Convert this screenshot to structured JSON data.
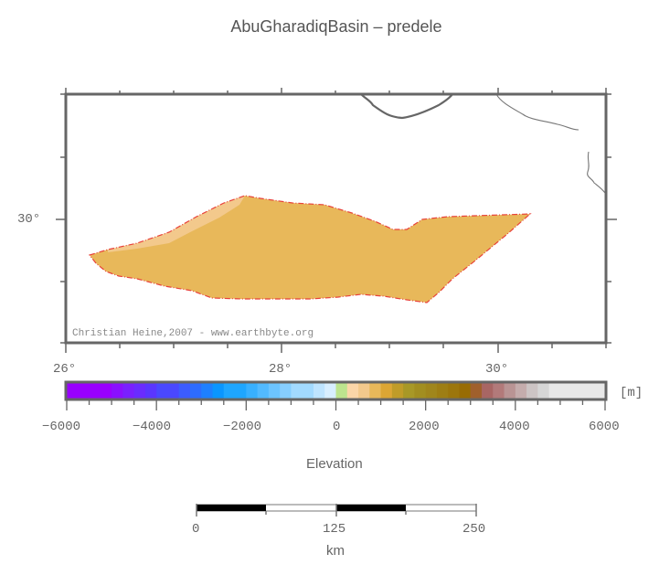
{
  "title": "AbuGharadiqBasin – predele",
  "map": {
    "credit": "Christian Heine,2007 - www.earthbyte.org",
    "x_ticks": [
      "26°",
      "28°",
      "30°"
    ],
    "y_ticks": [
      "30°"
    ],
    "basin_fill_color": "#e8b85a",
    "basin_light_fill_color": "#f3c98c",
    "outline_color": "#e8423a",
    "coastline_color": "#666666"
  },
  "colorbar": {
    "unit": "[m]",
    "tick_labels": [
      "−6000",
      "−4000",
      "−2000",
      "0",
      "2000",
      "4000",
      "6000"
    ],
    "label": "Elevation",
    "range": [
      -6000,
      6000
    ],
    "segments": [
      {
        "from": -6000,
        "to": -5000,
        "color": "#9900ff"
      },
      {
        "from": -5000,
        "to": -4750,
        "color": "#8a10ff"
      },
      {
        "from": -4750,
        "to": -4500,
        "color": "#7a20ff"
      },
      {
        "from": -4500,
        "to": -4250,
        "color": "#6a2cff"
      },
      {
        "from": -4250,
        "to": -4000,
        "color": "#5a36ff"
      },
      {
        "from": -4000,
        "to": -3500,
        "color": "#4a48ff"
      },
      {
        "from": -3500,
        "to": -3250,
        "color": "#3c5cff"
      },
      {
        "from": -3250,
        "to": -3000,
        "color": "#2d6cff"
      },
      {
        "from": -3000,
        "to": -2750,
        "color": "#1e80ff"
      },
      {
        "from": -2750,
        "to": -2500,
        "color": "#0a96ff"
      },
      {
        "from": -2500,
        "to": -2000,
        "color": "#1ea6ff"
      },
      {
        "from": -2000,
        "to": -1750,
        "color": "#38b0ff"
      },
      {
        "from": -1750,
        "to": -1500,
        "color": "#52baff"
      },
      {
        "from": -1500,
        "to": -1250,
        "color": "#6cc4ff"
      },
      {
        "from": -1250,
        "to": -1000,
        "color": "#86ceff"
      },
      {
        "from": -1000,
        "to": -500,
        "color": "#a2daff"
      },
      {
        "from": -500,
        "to": -250,
        "color": "#bee4ff"
      },
      {
        "from": -250,
        "to": 0,
        "color": "#d8eeff"
      },
      {
        "from": 0,
        "to": 250,
        "color": "#bde48e"
      },
      {
        "from": 250,
        "to": 500,
        "color": "#fbd6a8"
      },
      {
        "from": 500,
        "to": 750,
        "color": "#f3c98c"
      },
      {
        "from": 750,
        "to": 1000,
        "color": "#e8b85a"
      },
      {
        "from": 1000,
        "to": 1250,
        "color": "#dca634"
      },
      {
        "from": 1250,
        "to": 1500,
        "color": "#c09c28"
      },
      {
        "from": 1500,
        "to": 1750,
        "color": "#a89826"
      },
      {
        "from": 1750,
        "to": 2000,
        "color": "#a28e20"
      },
      {
        "from": 2000,
        "to": 2250,
        "color": "#a0861c"
      },
      {
        "from": 2250,
        "to": 2500,
        "color": "#9e7e14"
      },
      {
        "from": 2500,
        "to": 2750,
        "color": "#9c760c"
      },
      {
        "from": 2750,
        "to": 3000,
        "color": "#986c04"
      },
      {
        "from": 3000,
        "to": 3250,
        "color": "#a0602c"
      },
      {
        "from": 3250,
        "to": 3500,
        "color": "#a86664"
      },
      {
        "from": 3500,
        "to": 3750,
        "color": "#b27a7a"
      },
      {
        "from": 3750,
        "to": 4000,
        "color": "#b99494"
      },
      {
        "from": 4000,
        "to": 4250,
        "color": "#c4acac"
      },
      {
        "from": 4250,
        "to": 4500,
        "color": "#ccc4c4"
      },
      {
        "from": 4500,
        "to": 4750,
        "color": "#d6d6d6"
      },
      {
        "from": 4750,
        "to": 6000,
        "color": "#e8e8e8"
      }
    ]
  },
  "scalebar": {
    "tick_labels": [
      "0",
      "125",
      "250"
    ],
    "unit": "km"
  }
}
